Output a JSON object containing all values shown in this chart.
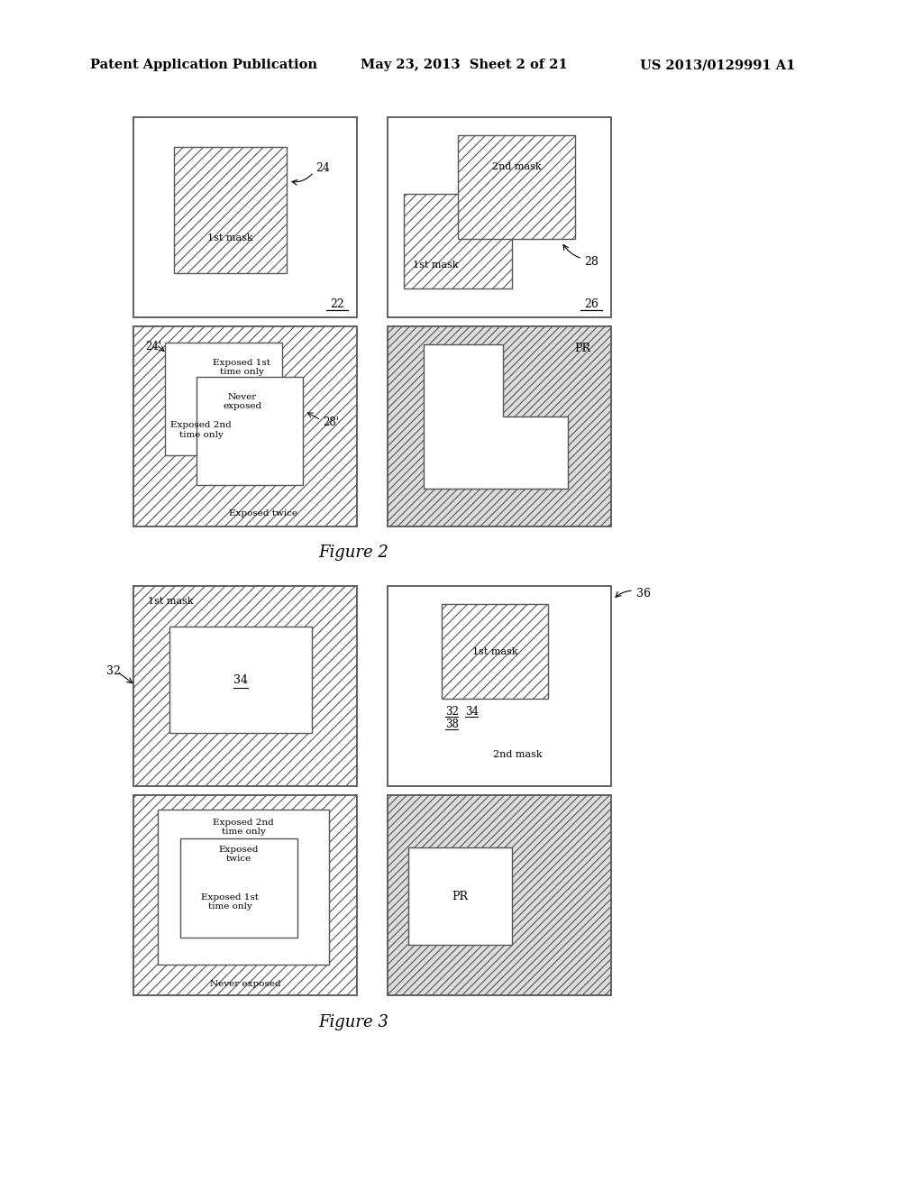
{
  "header_left": "Patent Application Publication",
  "header_mid": "May 23, 2013  Sheet 2 of 21",
  "header_right": "US 2013/0129991 A1",
  "fig2_caption": "Figure 2",
  "fig3_caption": "Figure 3"
}
